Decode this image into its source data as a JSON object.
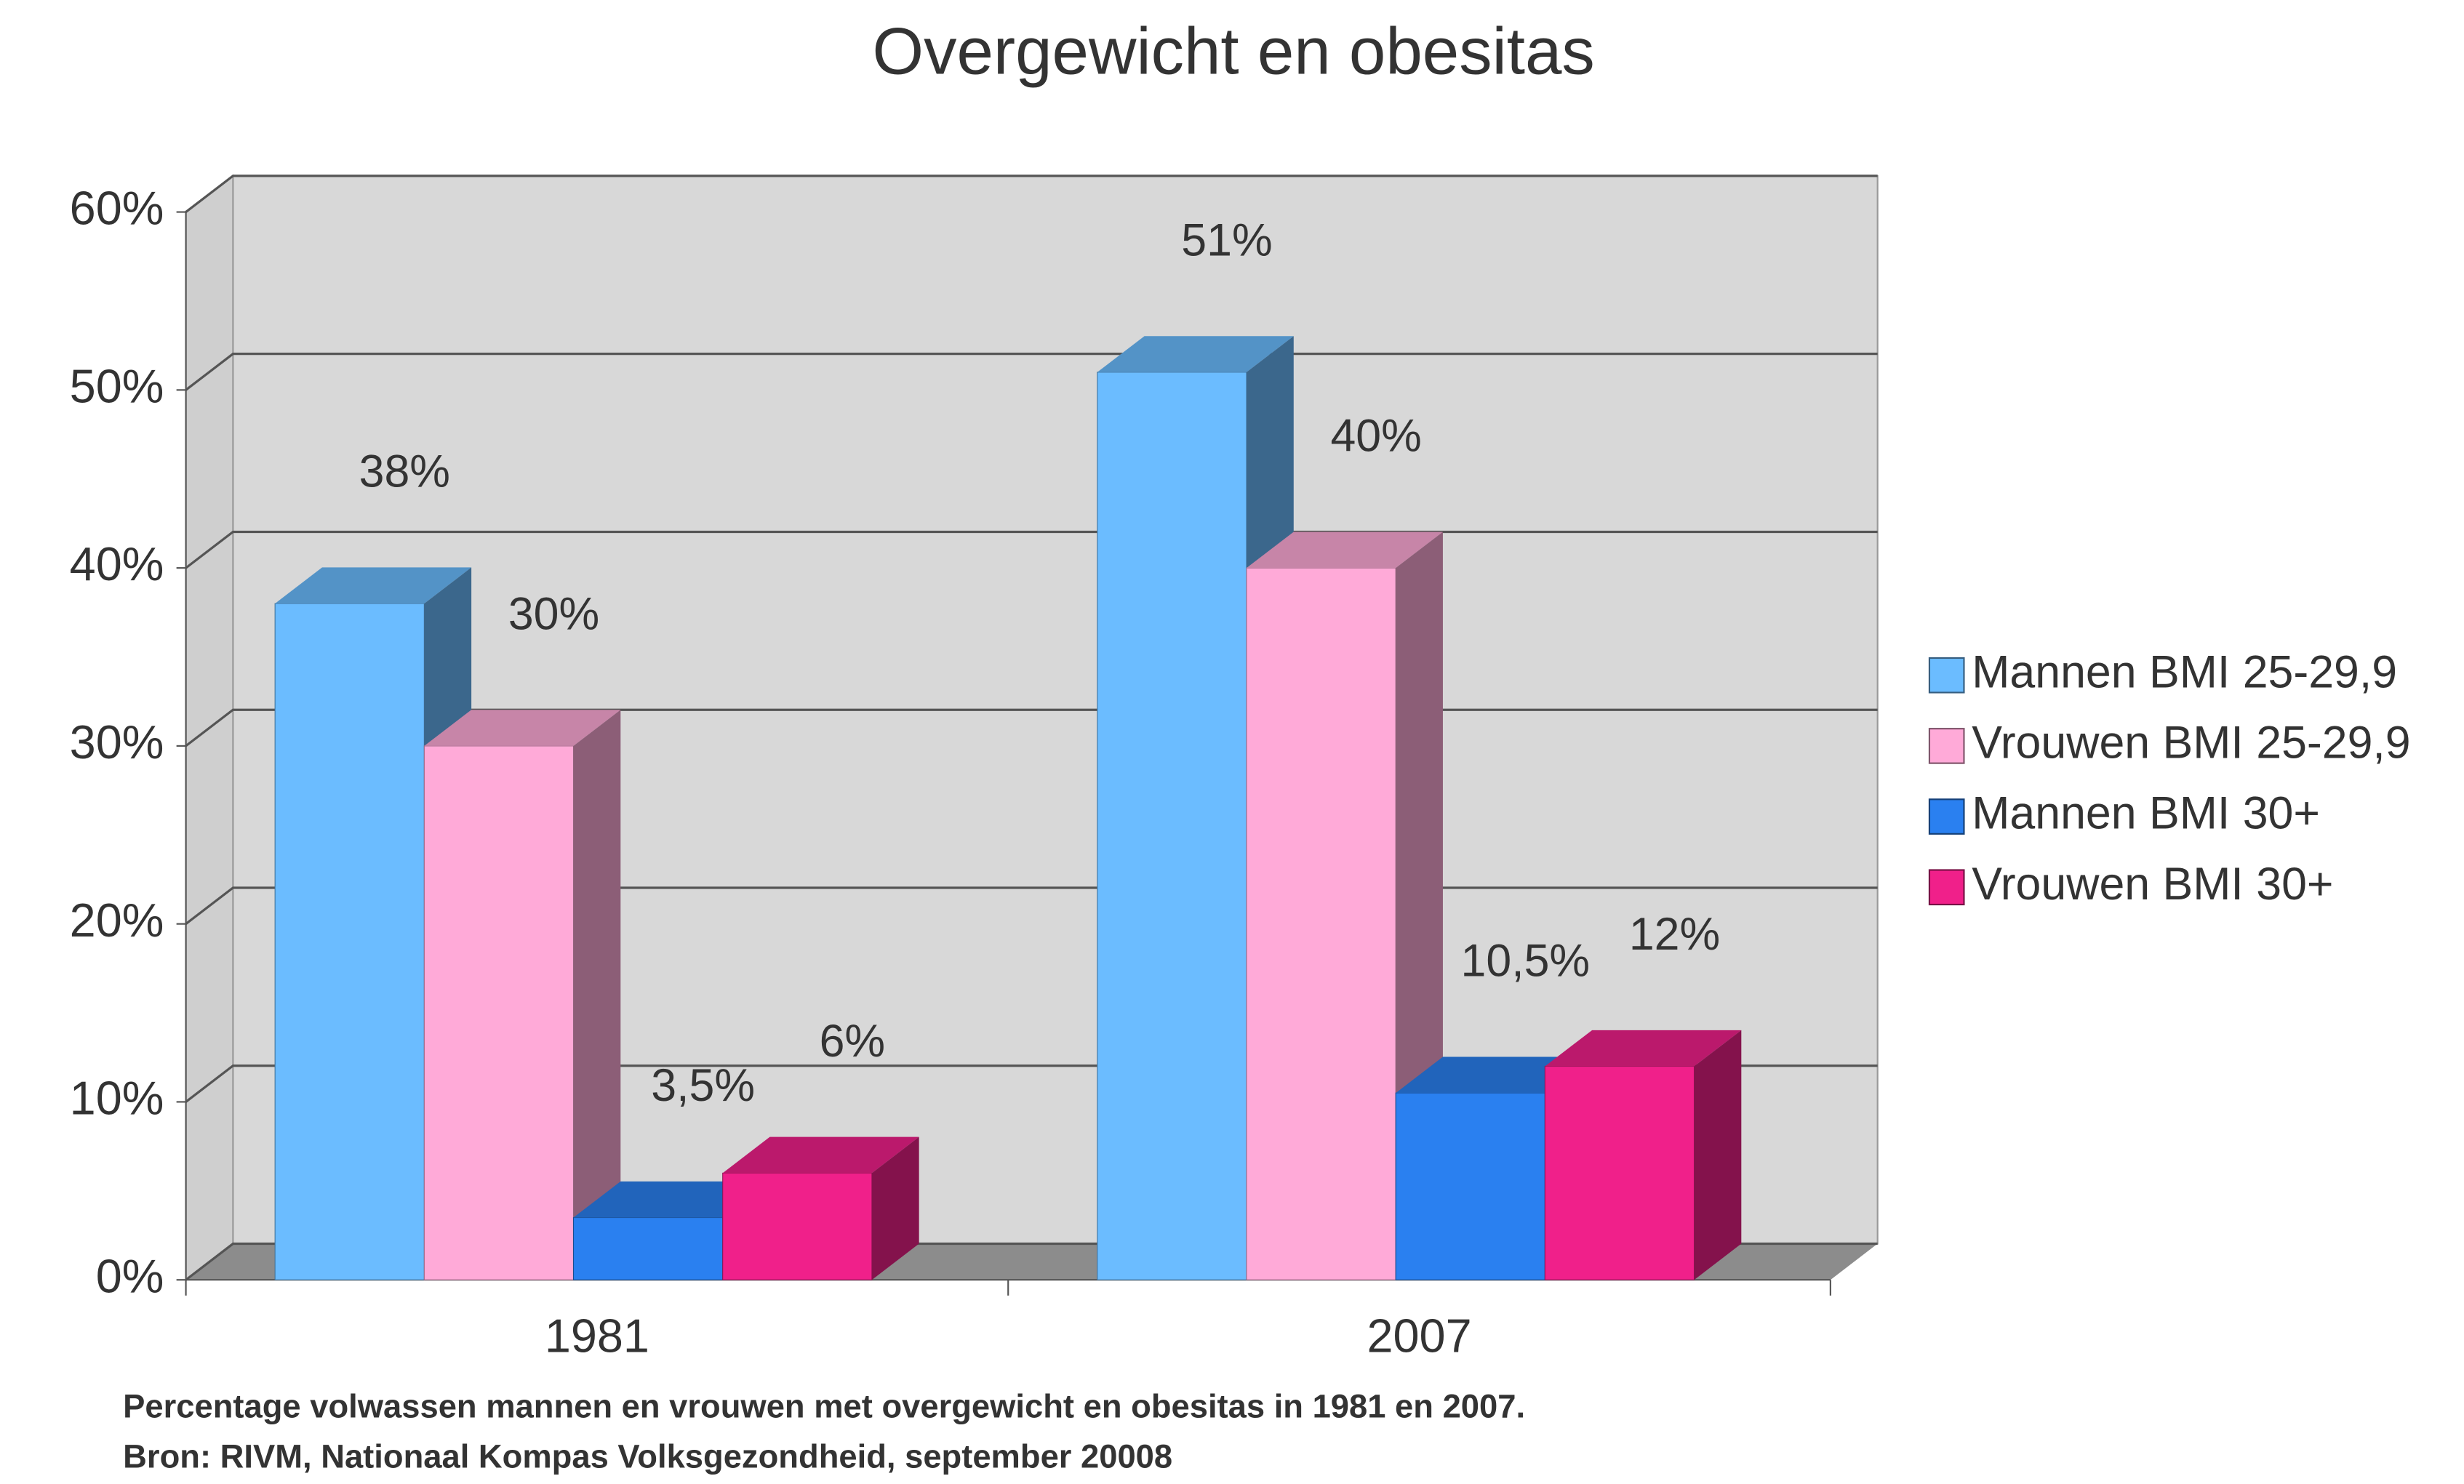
{
  "chart_data": {
    "type": "bar3d",
    "title": "Overgewicht en obesitas",
    "categories": [
      "1981",
      "2007"
    ],
    "series": [
      {
        "name": "Mannen BMI 25-29,9",
        "color": "#6bbcff",
        "values": [
          38,
          51
        ],
        "value_labels": [
          "38%",
          "51%"
        ]
      },
      {
        "name": "Vrouwen BMI 25-29,9",
        "color": "#ffaad8",
        "values": [
          30,
          40
        ],
        "value_labels": [
          "30%",
          "40%"
        ]
      },
      {
        "name": "Mannen BMI 30+",
        "color": "#2a80f0",
        "values": [
          3.5,
          10.5
        ],
        "value_labels": [
          "3,5%",
          "10,5%"
        ]
      },
      {
        "name": "Vrouwen BMI 30+",
        "color": "#f0208a",
        "values": [
          6,
          12
        ],
        "value_labels": [
          "6%",
          "12%"
        ]
      }
    ],
    "ylim": [
      0,
      60
    ],
    "yticks": [
      {
        "value": 0,
        "label": "0%"
      },
      {
        "value": 10,
        "label": "10%"
      },
      {
        "value": 20,
        "label": "20%"
      },
      {
        "value": 30,
        "label": "30%"
      },
      {
        "value": 40,
        "label": "40%"
      },
      {
        "value": 50,
        "label": "50%"
      },
      {
        "value": 60,
        "label": "60%"
      }
    ],
    "grid": true,
    "legend": "right",
    "notes": [
      "Percentage volwassen mannen en vrouwen met overgewicht en obesitas in 1981 en 2007.",
      "Bron: RIVM, Nationaal Kompas Volksgezondheid, september 20008"
    ]
  }
}
